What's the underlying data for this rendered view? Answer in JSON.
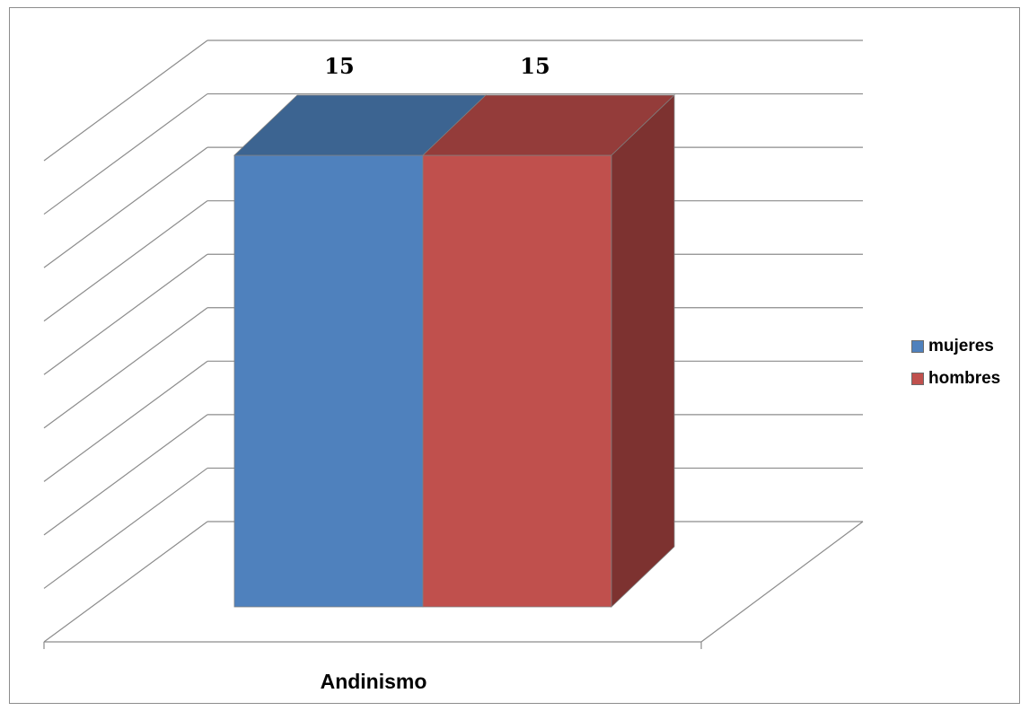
{
  "chart_data": {
    "type": "bar",
    "categories": [
      "Andinismo"
    ],
    "series": [
      {
        "name": "mujeres",
        "values": [
          15
        ],
        "color": "#4f81bd",
        "top_color": "#3c6491",
        "side_color": "#3c6491"
      },
      {
        "name": "hombres",
        "values": [
          15
        ],
        "color": "#c0504d",
        "top_color": "#943c3a",
        "side_color": "#7d3230"
      }
    ],
    "title": "",
    "xlabel": "",
    "ylabel": "",
    "ylim": [
      0,
      18
    ],
    "gridline_step": 2,
    "grid": true,
    "axis_labels_shown": false,
    "legend_position": "right",
    "style": "3d-clustered-column"
  }
}
